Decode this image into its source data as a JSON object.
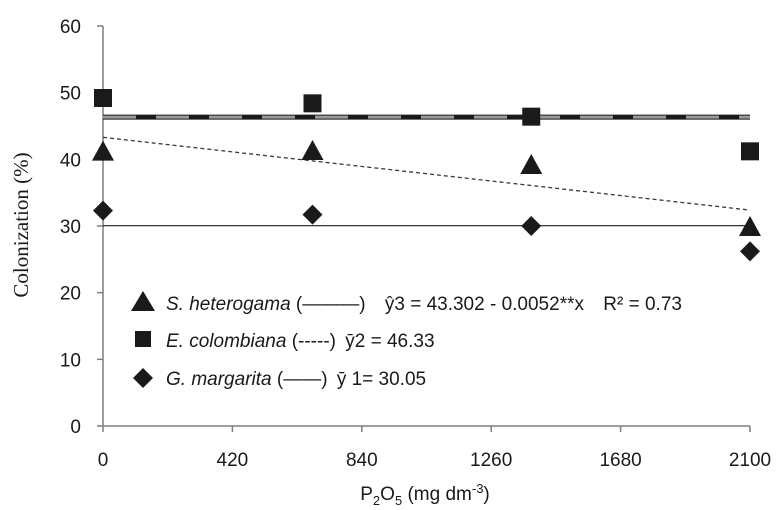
{
  "chart_data": {
    "type": "scatter",
    "xlabel": {
      "prefix": "P",
      "sub": "2",
      "mid": "O",
      "sub2": "5",
      "unit_pre": " (mg dm",
      "sup": "-3",
      "unit_post": ")"
    },
    "ylabel": "Colonization (%)",
    "xlim": [
      0,
      2100
    ],
    "ylim": [
      0,
      60
    ],
    "xticks": [
      0,
      420,
      840,
      1260,
      1680,
      2100
    ],
    "yticks": [
      0,
      10,
      20,
      30,
      40,
      50,
      60
    ],
    "grid": false,
    "legend_position": "bottom-left",
    "series": [
      {
        "name": "S. heterogama",
        "marker": "triangle",
        "x": [
          0,
          680,
          1390,
          2100
        ],
        "y": [
          41.0,
          41.1,
          39.0,
          29.7
        ],
        "fit": {
          "type": "linear",
          "intercept": 43.302,
          "slope": -0.0052,
          "style": "dotted"
        },
        "legend_line": "(———)",
        "equation": "ŷ3 = 43.302 - 0.0052**x",
        "r2": "R² = 0.73"
      },
      {
        "name": "E. colombiana",
        "marker": "square",
        "x": [
          0,
          680,
          1390,
          2100
        ],
        "y": [
          49.2,
          48.4,
          46.4,
          41.2
        ],
        "fit": {
          "type": "constant",
          "value": 46.33,
          "style": "dashed"
        },
        "legend_line": "(-----)",
        "equation": "ȳ2 = 46.33"
      },
      {
        "name": "G. margarita",
        "marker": "diamond",
        "x": [
          0,
          680,
          1390,
          2100
        ],
        "y": [
          32.3,
          31.7,
          30.0,
          26.2
        ],
        "fit": {
          "type": "constant",
          "value": 30.05,
          "style": "solid"
        },
        "legend_line": "(——)",
        "equation": "ȳ 1= 30.05"
      }
    ],
    "colors": {
      "marker": "#1a1a1a",
      "axis": "#7f7f7f",
      "dashed_fit": "#9a9a9a",
      "solid_fit": "#1a1a1a"
    }
  }
}
